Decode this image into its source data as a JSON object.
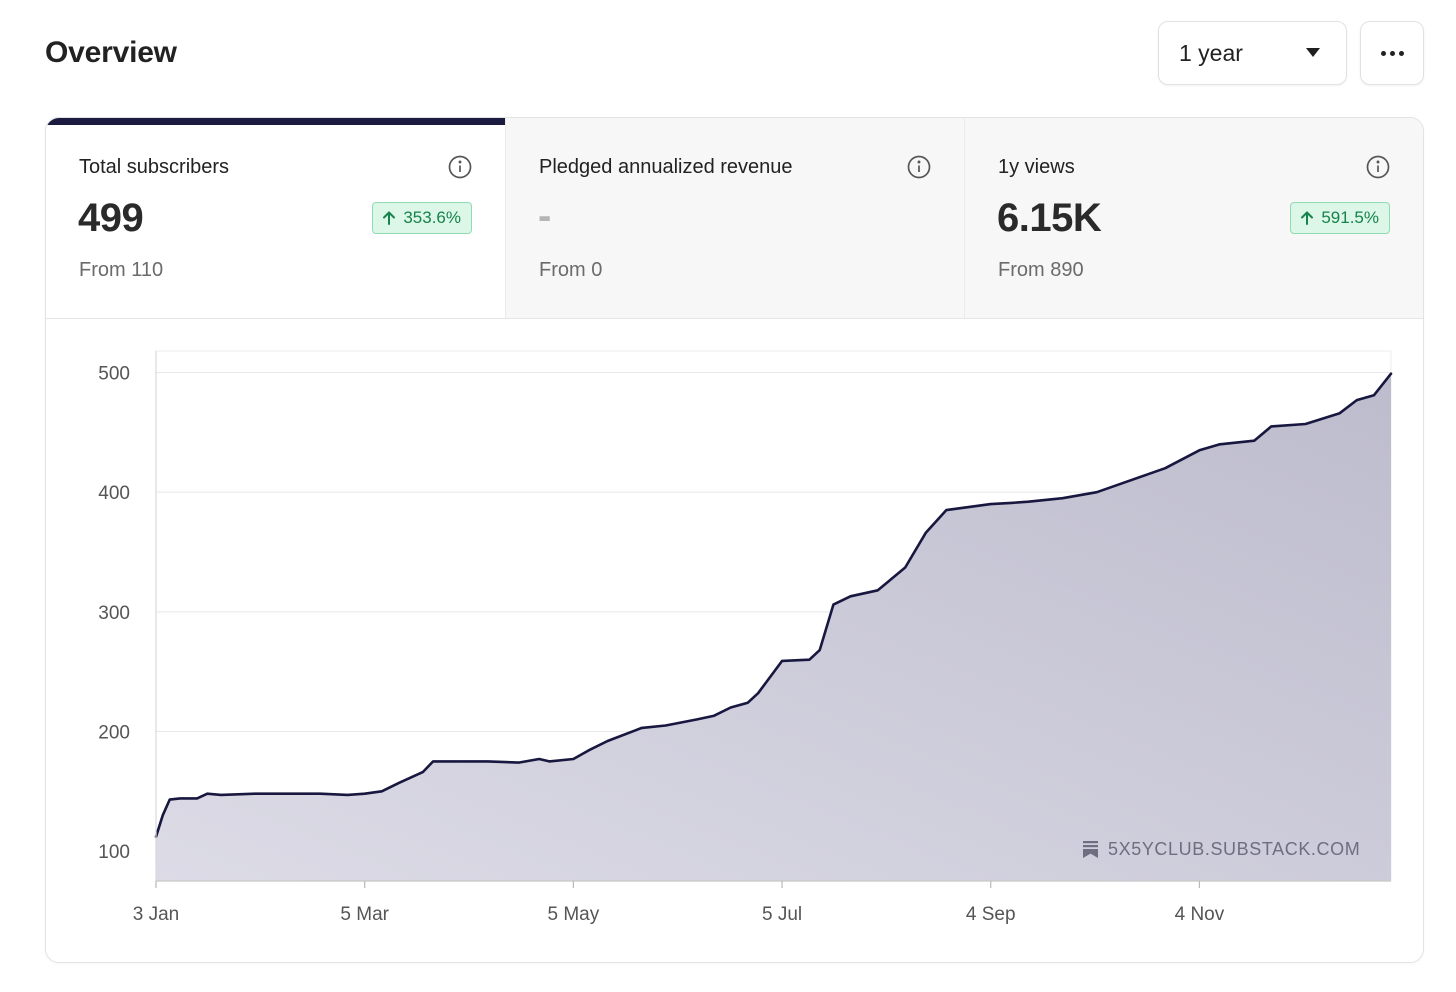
{
  "header": {
    "title": "Overview",
    "period_select": {
      "value": "1 year"
    },
    "more_icon": "ellipsis-icon"
  },
  "metrics": [
    {
      "label": "Total subscribers",
      "value": "499",
      "change": "353.6%",
      "from": "From 110",
      "active": true,
      "info_icon": "info-icon",
      "change_icon": "arrow-up-icon"
    },
    {
      "label": "Pledged annualized revenue",
      "value": "-",
      "from": "From 0",
      "active": false,
      "info_icon": "info-icon"
    },
    {
      "label": "1y views",
      "value": "6.15K",
      "change": "591.5%",
      "from": "From 890",
      "active": false,
      "info_icon": "info-icon",
      "change_icon": "arrow-up-icon"
    }
  ],
  "colors": {
    "accent": "#1b1b3f",
    "line": "#17173f",
    "fill": "#c8c7d6",
    "badge_bg": "#dcf6e8",
    "badge_text": "#16834b"
  },
  "watermark": {
    "text": "5X5YCLUB.SUBSTACK.COM",
    "icon": "substack-icon"
  },
  "chart_data": {
    "type": "area",
    "x_ticks": [
      "3 Jan",
      "5 Mar",
      "5 May",
      "5 Jul",
      "4 Sep",
      "4 Nov"
    ],
    "y_ticks": [
      100,
      200,
      300,
      400,
      500
    ],
    "ylim": [
      75,
      518
    ],
    "xlim_day_of_year": [
      3,
      364
    ],
    "grid": true,
    "series": [
      {
        "x": [
          "3 Jan",
          "5 Jan",
          "7 Jan",
          "10 Jan",
          "15 Jan",
          "18 Jan",
          "22 Jan",
          "1 Feb",
          "20 Feb",
          "28 Feb",
          "5 Mar",
          "10 Mar",
          "15 Mar",
          "22 Mar",
          "25 Mar",
          "5 Apr",
          "10 Apr",
          "19 Apr",
          "25 Apr",
          "28 Apr",
          "5 May",
          "10 May",
          "15 May",
          "25 May",
          "1 Jun",
          "10 Jun",
          "15 Jun",
          "20 Jun",
          "25 Jun",
          "28 Jun",
          "5 Jul",
          "13 Jul",
          "16 Jul",
          "20 Jul",
          "25 Jul",
          "2 Aug",
          "10 Aug",
          "16 Aug",
          "22 Aug",
          "4 Sep",
          "10 Sep",
          "15 Sep",
          "25 Sep",
          "5 Oct",
          "10 Oct",
          "20 Oct",
          "25 Oct",
          "4 Nov",
          "10 Nov",
          "20 Nov",
          "25 Nov",
          "5 Dec",
          "15 Dec",
          "20 Dec",
          "25 Dec",
          "30 Dec"
        ],
        "y": [
          112,
          130,
          143,
          144,
          144,
          148,
          147,
          148,
          148,
          147,
          148,
          150,
          157,
          166,
          175,
          175,
          175,
          174,
          177,
          175,
          177,
          185,
          192,
          203,
          205,
          210,
          213,
          220,
          224,
          232,
          259,
          260,
          268,
          306,
          313,
          318,
          337,
          366,
          385,
          390,
          391,
          392,
          395,
          400,
          405,
          415,
          420,
          435,
          440,
          443,
          455,
          457,
          466,
          477,
          481,
          499
        ]
      }
    ]
  }
}
